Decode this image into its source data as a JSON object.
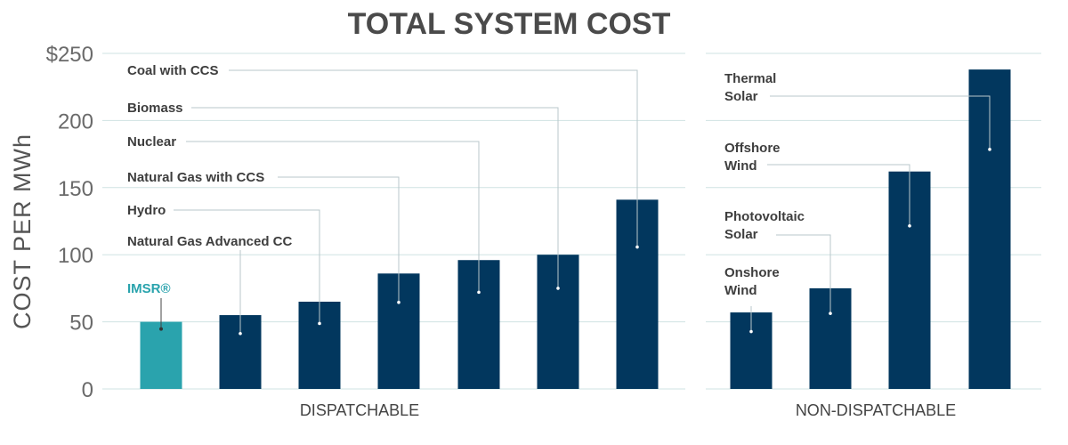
{
  "chart_data": {
    "type": "bar",
    "title": "TOTAL SYSTEM COST",
    "ylabel": "COST PER MWh",
    "ylim": [
      0,
      250
    ],
    "yticks": [
      0,
      50,
      100,
      150,
      200,
      250
    ],
    "ytick_labels": [
      "0",
      "50",
      "100",
      "150",
      "200",
      "$250"
    ],
    "grid": true,
    "groups": [
      {
        "name": "DISPATCHABLE",
        "categories": [
          "IMSR®",
          "Natural Gas Advanced CC",
          "Hydro",
          "Natural Gas with CCS",
          "Nuclear",
          "Biomass",
          "Coal with CCS"
        ],
        "values": [
          50,
          55,
          65,
          86,
          96,
          100,
          141
        ]
      },
      {
        "name": "NON-DISPATCHABLE",
        "categories": [
          "Onshore Wind",
          "Photovoltaic Solar",
          "Offshore Wind",
          "Thermal Solar"
        ],
        "values": [
          57,
          75,
          162,
          238
        ]
      }
    ],
    "colors": {
      "highlight": "#2aa3ad",
      "bar": "#02375e"
    }
  }
}
